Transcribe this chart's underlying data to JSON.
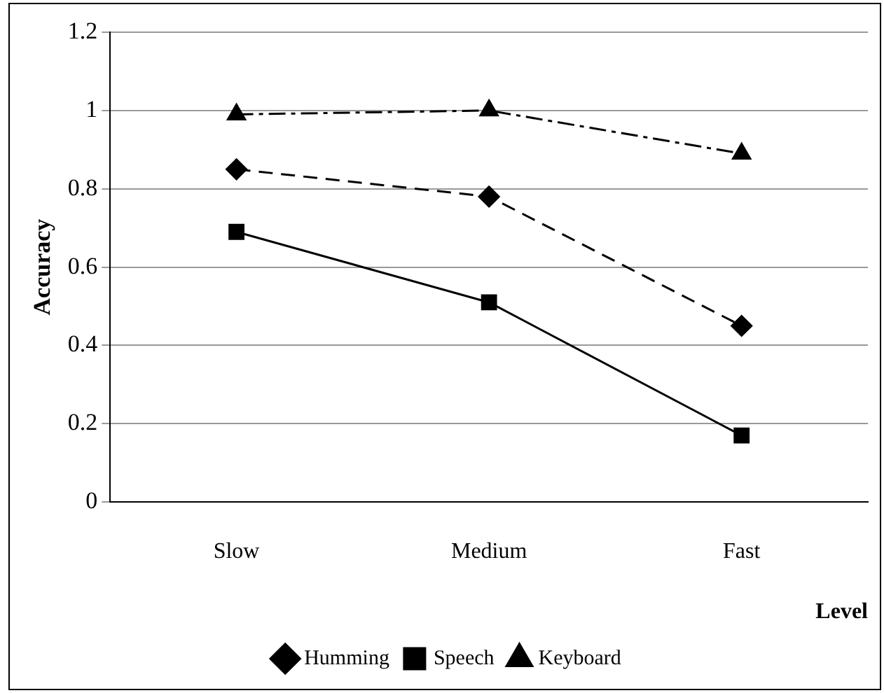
{
  "chart_data": {
    "type": "line",
    "ylabel": "Accuracy",
    "xlabel": "Level",
    "categories": [
      "Slow",
      "Medium",
      "Fast"
    ],
    "series": [
      {
        "name": "Humming",
        "color": "#000000",
        "values": [
          0.85,
          0.78,
          0.45
        ],
        "marker": "diamond",
        "line_style": "dashed"
      },
      {
        "name": "Speech",
        "color": "#000000",
        "values": [
          0.69,
          0.51,
          0.17
        ],
        "marker": "square",
        "line_style": "solid"
      },
      {
        "name": "Keyboard",
        "color": "#000000",
        "values": [
          0.99,
          1.0,
          0.89
        ],
        "marker": "triangle",
        "line_style": "dashdot"
      }
    ],
    "ylim": [
      0,
      1.2
    ],
    "yticks": [
      0,
      0.2,
      0.4,
      0.6,
      0.8,
      1,
      1.2
    ],
    "grid": "y",
    "legend": "bottom"
  }
}
